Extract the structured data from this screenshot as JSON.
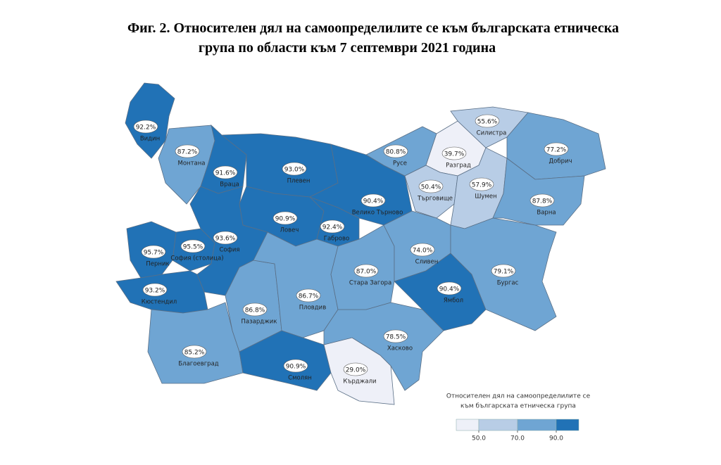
{
  "chart_data": {
    "type": "choropleth",
    "title": [
      "Фиг. 2. Относителен дял на самоопределилите се към българската етническа",
      "група по области към 7 септември 2021 година"
    ],
    "categories": [
      "Видин",
      "Монтана",
      "Враца",
      "Плевен",
      "Ловеч",
      "Габрово",
      "Велико Търново",
      "Русе",
      "Разград",
      "Силистра",
      "Добрич",
      "Търговище",
      "Шумен",
      "Варна",
      "София (столица)",
      "София",
      "Перник",
      "Кюстендил",
      "Благоевград",
      "Пазарджик",
      "Пловдив",
      "Смолян",
      "Кърджали",
      "Хасково",
      "Стара Загора",
      "Сливен",
      "Ямбол",
      "Бургас"
    ],
    "values": [
      92.2,
      87.2,
      91.6,
      93.0,
      90.9,
      92.4,
      90.4,
      80.8,
      39.7,
      55.6,
      77.2,
      50.4,
      57.9,
      87.8,
      95.5,
      93.6,
      95.7,
      93.2,
      85.2,
      86.8,
      86.7,
      90.9,
      29.0,
      78.5,
      87.0,
      74.0,
      90.4,
      79.1
    ],
    "value_labels": [
      "92.2%",
      "87.2%",
      "91.6%",
      "93.0%",
      "90.9%",
      "92.4%",
      "90.4%",
      "80.8%",
      "39.7%",
      "55.6%",
      "77.2%",
      "50.4%",
      "57.9%",
      "87.8%",
      "95.5%",
      "93.6%",
      "95.7%",
      "93.2%",
      "85.2%",
      "86.8%",
      "86.7%",
      "90.9%",
      "29.0%",
      "78.5%",
      "87.0%",
      "74.0%",
      "90.4%",
      "79.1%"
    ],
    "legend": {
      "title": [
        "Относителен дял на самоопределилите се",
        "към българската етническа група"
      ],
      "ticks": [
        {
          "value": 50,
          "label": "50.0"
        },
        {
          "value": 70,
          "label": "70.0"
        },
        {
          "value": 90,
          "label": "90.0"
        }
      ],
      "colors": [
        "#eef0f8",
        "#b8cde6",
        "#6fa5d3",
        "#2172b6"
      ]
    }
  }
}
